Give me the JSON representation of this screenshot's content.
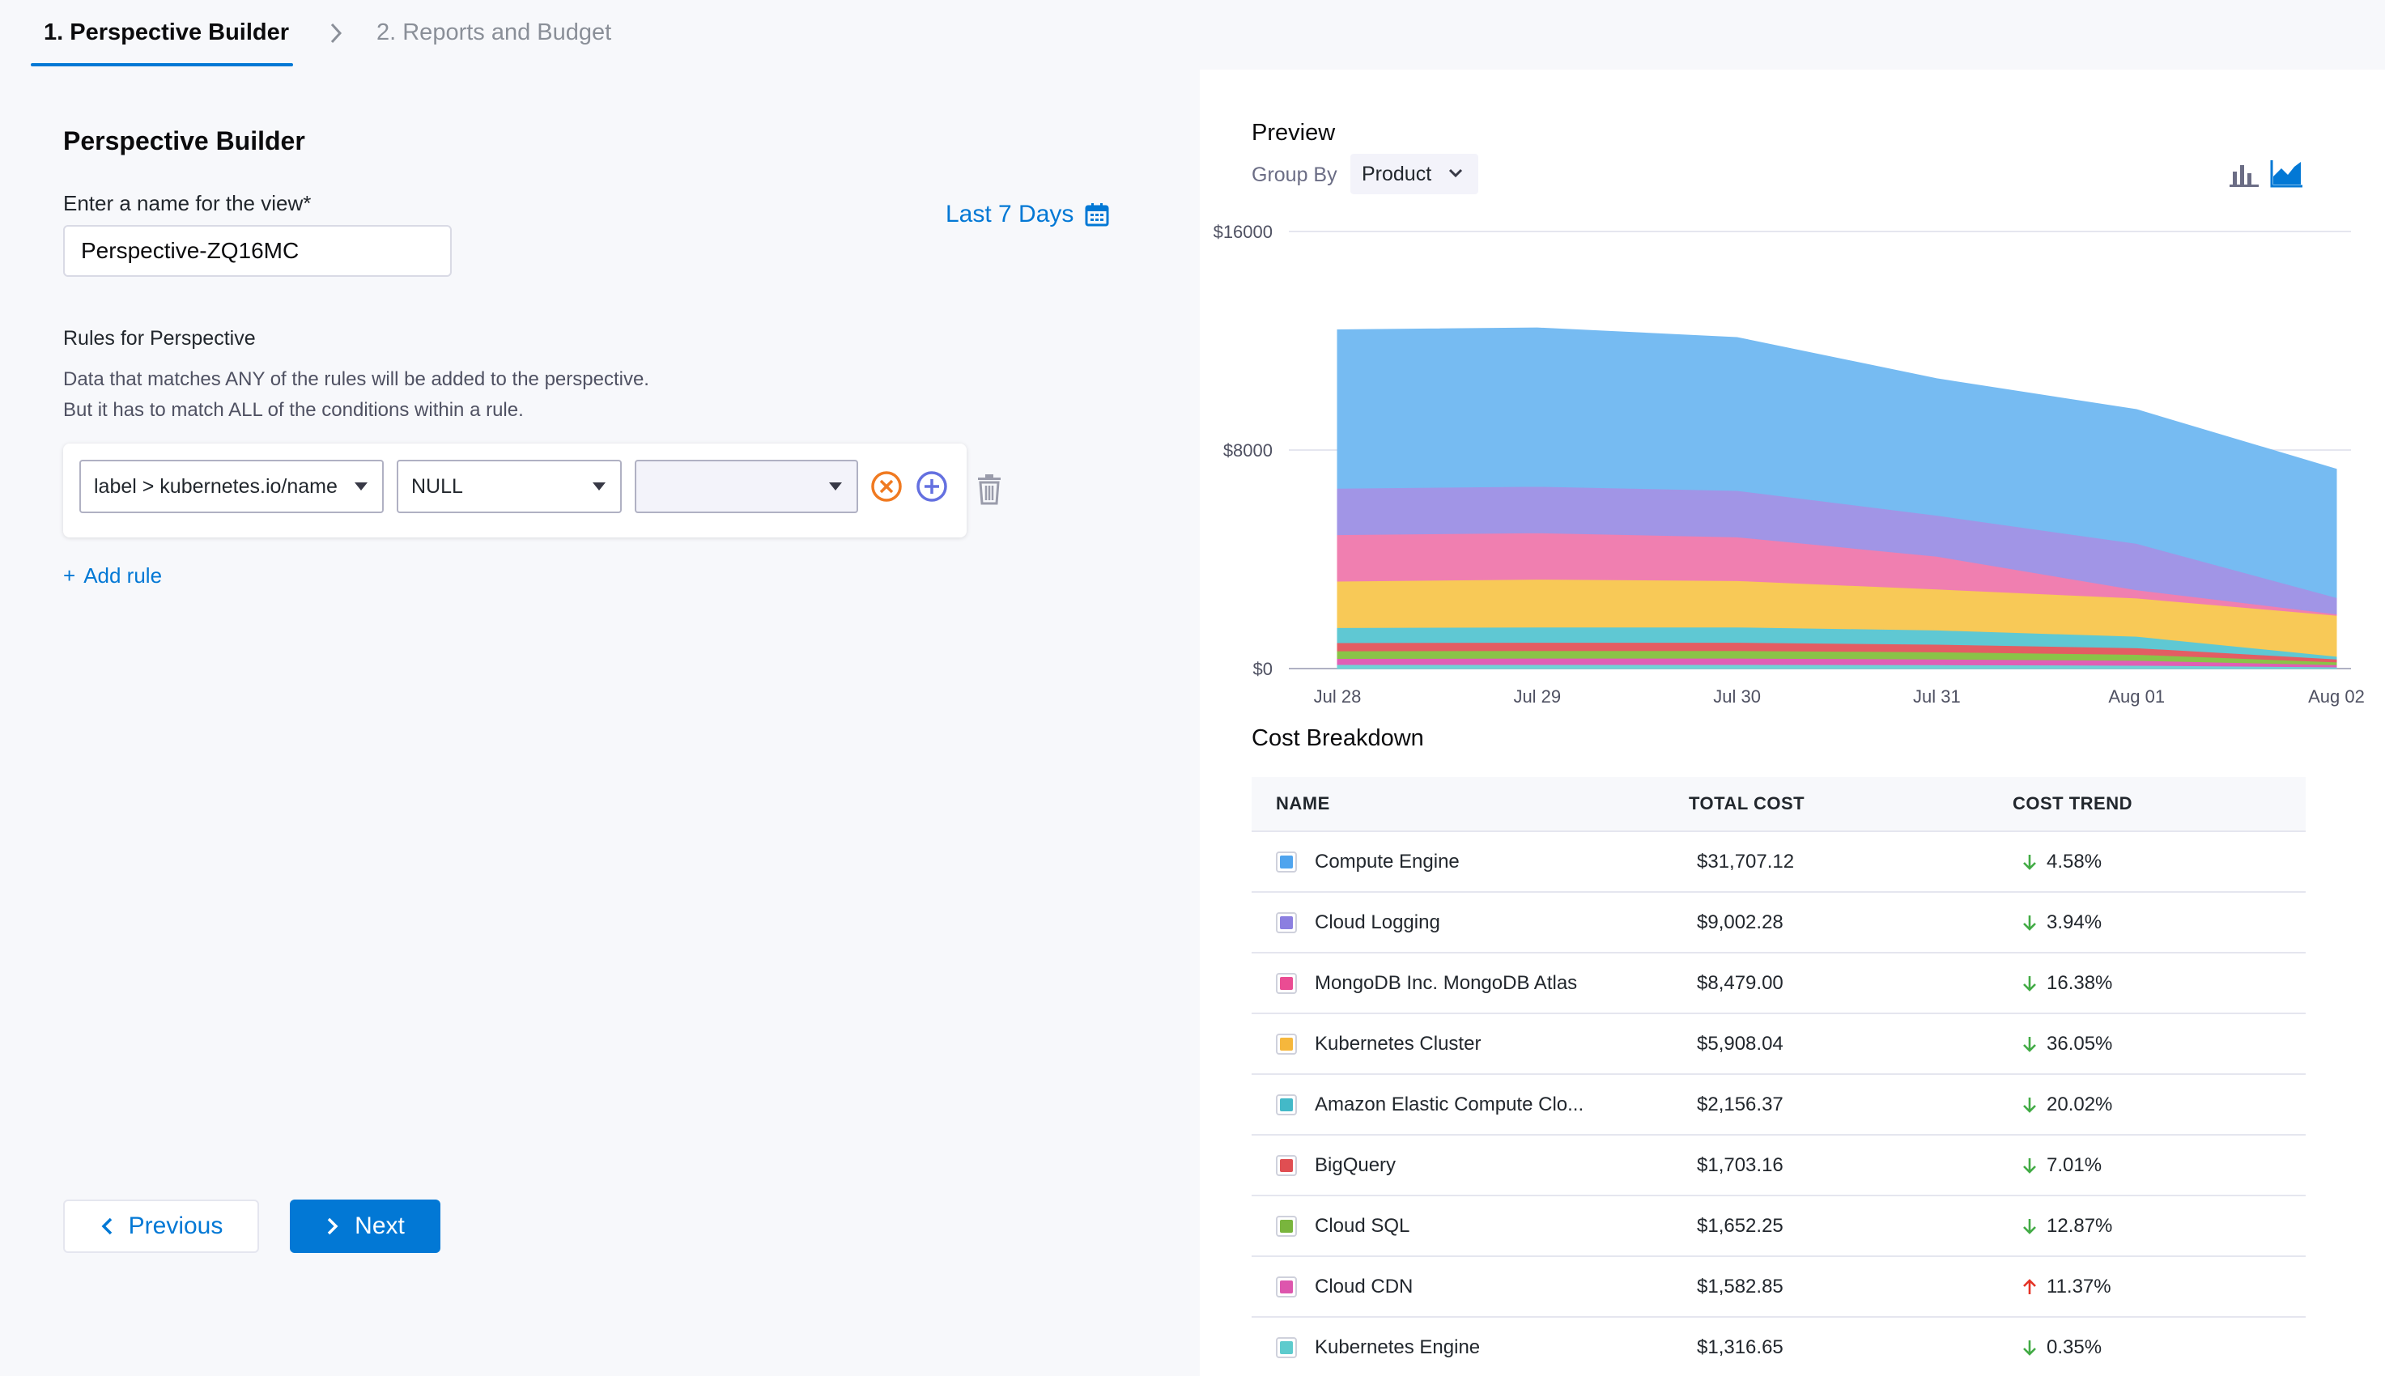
{
  "steps": [
    {
      "label": "1. Perspective Builder",
      "active": true
    },
    {
      "label": "2. Reports and Budget",
      "active": false
    }
  ],
  "builder": {
    "title": "Perspective Builder",
    "name_label": "Enter a name for the view*",
    "name_value": "Perspective-ZQ16MC",
    "date_range": "Last 7 Days",
    "rules_title": "Rules for Perspective",
    "rules_desc_1": "Data that matches ANY of the rules will be added to the perspective.",
    "rules_desc_2": "But it has to match ALL of the conditions within a rule.",
    "rule": {
      "field": "label > kubernetes.io/name",
      "operator": "NULL",
      "value": ""
    },
    "add_rule": "Add rule"
  },
  "footer": {
    "previous": "Previous",
    "next": "Next"
  },
  "preview": {
    "title": "Preview",
    "group_by_label": "Group By",
    "group_by_value": "Product"
  },
  "chart_data": {
    "type": "area",
    "stacked": true,
    "x": [
      "Jul 28",
      "Jul 29",
      "Jul 30",
      "Jul 31",
      "Aug 01",
      "Aug 02"
    ],
    "ylim": [
      0,
      16000
    ],
    "yticks": [
      "$0",
      "$8000",
      "$16000"
    ],
    "grid": true,
    "series": [
      {
        "name": "Kubernetes Engine",
        "color": "#6fd3d6",
        "values": [
          150,
          150,
          150,
          140,
          120,
          60
        ]
      },
      {
        "name": "Cloud CDN",
        "color": "#e05fb5",
        "values": [
          220,
          230,
          230,
          210,
          180,
          80
        ]
      },
      {
        "name": "Cloud SQL",
        "color": "#8ac348",
        "values": [
          280,
          280,
          280,
          260,
          220,
          100
        ]
      },
      {
        "name": "BigQuery",
        "color": "#e35d63",
        "values": [
          300,
          300,
          300,
          280,
          240,
          110
        ]
      },
      {
        "name": "Amazon Elastic Compute Clo...",
        "color": "#5fc8d3",
        "values": [
          550,
          560,
          560,
          520,
          420,
          100
        ]
      },
      {
        "name": "Kubernetes Cluster",
        "color": "#f8c957",
        "values": [
          1700,
          1750,
          1700,
          1500,
          1400,
          1500
        ]
      },
      {
        "name": "MongoDB Inc. MongoDB Atlas",
        "color": "#f07fb0",
        "values": [
          1700,
          1700,
          1600,
          1200,
          300,
          50
        ]
      },
      {
        "name": "Cloud Logging",
        "color": "#a195e6",
        "values": [
          1700,
          1700,
          1700,
          1500,
          1700,
          600
        ]
      },
      {
        "name": "Compute Engine",
        "color": "#76bbf2",
        "values": [
          5800,
          5800,
          5600,
          5000,
          4900,
          4700
        ]
      }
    ]
  },
  "breakdown": {
    "title": "Cost Breakdown",
    "headers": {
      "name": "NAME",
      "cost": "TOTAL COST",
      "trend": "COST TREND"
    },
    "rows": [
      {
        "name": "Compute Engine",
        "color": "#4fa4ee",
        "cost": "$31,707.12",
        "trend": "4.58%",
        "dir": "down"
      },
      {
        "name": "Cloud Logging",
        "color": "#8b7fe0",
        "cost": "$9,002.28",
        "trend": "3.94%",
        "dir": "down"
      },
      {
        "name": "MongoDB Inc. MongoDB Atlas",
        "color": "#ea4c93",
        "cost": "$8,479.00",
        "trend": "16.38%",
        "dir": "down"
      },
      {
        "name": "Kubernetes Cluster",
        "color": "#f6b73c",
        "cost": "$5,908.04",
        "trend": "36.05%",
        "dir": "down"
      },
      {
        "name": "Amazon Elastic Compute Clo...",
        "color": "#43b9c8",
        "cost": "$2,156.37",
        "trend": "20.02%",
        "dir": "down"
      },
      {
        "name": "BigQuery",
        "color": "#e04e52",
        "cost": "$1,703.16",
        "trend": "7.01%",
        "dir": "down"
      },
      {
        "name": "Cloud SQL",
        "color": "#79b53d",
        "cost": "$1,652.25",
        "trend": "12.87%",
        "dir": "down"
      },
      {
        "name": "Cloud CDN",
        "color": "#dd56ad",
        "cost": "$1,582.85",
        "trend": "11.37%",
        "dir": "up"
      },
      {
        "name": "Kubernetes Engine",
        "color": "#5dcbcd",
        "cost": "$1,316.65",
        "trend": "0.35%",
        "dir": "down"
      }
    ]
  },
  "colors": {
    "accent": "#0278d5",
    "trend_down": "#42ab45",
    "trend_up": "#e43326"
  }
}
